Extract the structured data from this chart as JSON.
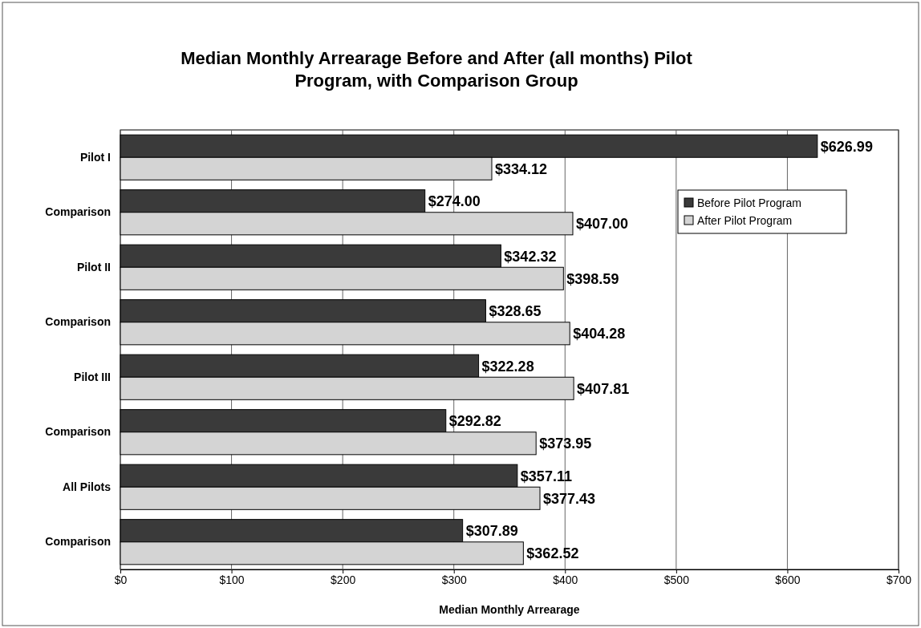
{
  "chart_data": {
    "type": "bar",
    "orientation": "horizontal",
    "title": "Median Monthly Arrearage Before and After (all months) Pilot Program, with Comparison Group",
    "xlabel": "Median Monthly Arrearage",
    "categories": [
      "Pilot I",
      "Comparison",
      "Pilot II",
      "Comparison",
      "Pilot III",
      "Comparison",
      "All Pilots",
      "Comparison"
    ],
    "series": [
      {
        "name": "Before Pilot Program",
        "color": "#3a3a3a",
        "values": [
          626.99,
          274.0,
          342.32,
          328.65,
          322.28,
          292.82,
          357.11,
          307.89
        ],
        "value_labels": [
          "$626.99",
          "$274.00",
          "$342.32",
          "$328.65",
          "$322.28",
          "$292.82",
          "$357.11",
          "$307.89"
        ]
      },
      {
        "name": "After Pilot Program",
        "color": "#d4d4d4",
        "values": [
          334.12,
          407.0,
          398.59,
          404.28,
          407.81,
          373.95,
          377.43,
          362.52
        ],
        "value_labels": [
          "$334.12",
          "$407.00",
          "$398.59",
          "$404.28",
          "$407.81",
          "$373.95",
          "$377.43",
          "$362.52"
        ]
      }
    ],
    "xlim": [
      0,
      700
    ],
    "xticks": [
      {
        "value": 0,
        "label": "$0"
      },
      {
        "value": 100,
        "label": "$100"
      },
      {
        "value": 200,
        "label": "$200"
      },
      {
        "value": 300,
        "label": "$300"
      },
      {
        "value": 400,
        "label": "$400"
      },
      {
        "value": 500,
        "label": "$500"
      },
      {
        "value": 600,
        "label": "$600"
      },
      {
        "value": 700,
        "label": "$700"
      }
    ],
    "grid": "x",
    "legend": "top right"
  }
}
